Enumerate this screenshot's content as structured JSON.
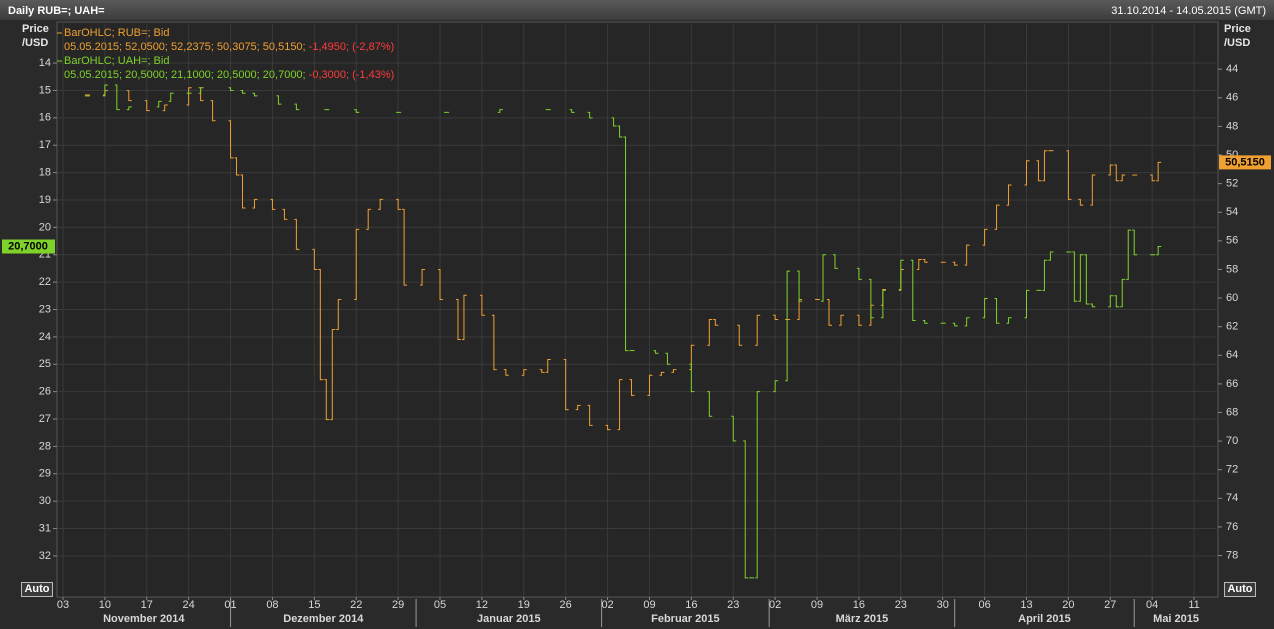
{
  "chart_data": {
    "type": "line",
    "line_style": "step",
    "title": "Daily RUB=; UAH=",
    "date_range": "31.10.2014 - 14.05.2015 (GMT)",
    "y_label": "Price /USD",
    "y2_label": "Price /USD",
    "inverted": true,
    "grid": true,
    "negative_color": "#ff3b3b",
    "controls": [
      "Auto",
      "Auto"
    ],
    "xlim": [
      "2014-11-02",
      "2015-05-15"
    ],
    "xticks": [
      {
        "value": "2014-11-03",
        "label": "03"
      },
      {
        "value": "2014-11-10",
        "label": "10"
      },
      {
        "value": "2014-11-17",
        "label": "17"
      },
      {
        "value": "2014-11-24",
        "label": "24"
      },
      {
        "value": "2014-12-01",
        "label": "01"
      },
      {
        "value": "2014-12-08",
        "label": "08"
      },
      {
        "value": "2014-12-15",
        "label": "15"
      },
      {
        "value": "2014-12-22",
        "label": "22"
      },
      {
        "value": "2014-12-29",
        "label": "29"
      },
      {
        "value": "2015-01-05",
        "label": "05"
      },
      {
        "value": "2015-01-12",
        "label": "12"
      },
      {
        "value": "2015-01-19",
        "label": "19"
      },
      {
        "value": "2015-01-26",
        "label": "26"
      },
      {
        "value": "2015-02-02",
        "label": "02"
      },
      {
        "value": "2015-02-09",
        "label": "09"
      },
      {
        "value": "2015-02-16",
        "label": "16"
      },
      {
        "value": "2015-02-23",
        "label": "23"
      },
      {
        "value": "2015-03-02",
        "label": "02"
      },
      {
        "value": "2015-03-09",
        "label": "09"
      },
      {
        "value": "2015-03-16",
        "label": "16"
      },
      {
        "value": "2015-03-23",
        "label": "23"
      },
      {
        "value": "2015-03-30",
        "label": "30"
      },
      {
        "value": "2015-04-06",
        "label": "06"
      },
      {
        "value": "2015-04-13",
        "label": "13"
      },
      {
        "value": "2015-04-20",
        "label": "20"
      },
      {
        "value": "2015-04-27",
        "label": "27"
      },
      {
        "value": "2015-05-04",
        "label": "04"
      },
      {
        "value": "2015-05-11",
        "label": "11"
      }
    ],
    "months": [
      {
        "value": "2014-11-01",
        "label": "November 2014"
      },
      {
        "value": "2014-12-01",
        "label": "Dezember 2014"
      },
      {
        "value": "2015-01-01",
        "label": "Januar 2015"
      },
      {
        "value": "2015-02-01",
        "label": "Februar 2015"
      },
      {
        "value": "2015-03-01",
        "label": "März 2015"
      },
      {
        "value": "2015-04-01",
        "label": "April 2015"
      },
      {
        "value": "2015-05-01",
        "label": "Mai 2015"
      }
    ],
    "ylim": [
      12.5,
      33.5
    ],
    "yticks": [
      14,
      15,
      16,
      17,
      18,
      19,
      20,
      21,
      22,
      23,
      24,
      25,
      26,
      27,
      28,
      29,
      30,
      31,
      32
    ],
    "y2lim": [
      40.7,
      80.9
    ],
    "y2ticks": [
      44,
      46,
      48,
      50,
      52,
      54,
      56,
      58,
      60,
      62,
      64,
      66,
      68,
      70,
      72,
      74,
      76,
      78
    ],
    "series": [
      {
        "name": "BarOHLC; RUB=; Bid",
        "color": "#f0a030",
        "axis": "y2",
        "quote": "05.05.2015; 52,0500; 52,2375; 50,3075; 50,5150;",
        "change": "-1,4950; (-2,87%)",
        "last_label": {
          "value": 50.515,
          "label": "50,5150"
        },
        "x": [
          "2014-11-07",
          "2014-11-10",
          "2014-11-14",
          "2014-11-17",
          "2014-11-20",
          "2014-11-24",
          "2014-11-26",
          "2014-11-28",
          "2014-12-01",
          "2014-12-02",
          "2014-12-03",
          "2014-12-05",
          "2014-12-08",
          "2014-12-10",
          "2014-12-12",
          "2014-12-15",
          "2014-12-16",
          "2014-12-17",
          "2014-12-18",
          "2014-12-19",
          "2014-12-22",
          "2014-12-24",
          "2014-12-26",
          "2014-12-29",
          "2014-12-30",
          "2015-01-02",
          "2015-01-05",
          "2015-01-08",
          "2015-01-09",
          "2015-01-12",
          "2015-01-14",
          "2015-01-16",
          "2015-01-19",
          "2015-01-22",
          "2015-01-23",
          "2015-01-26",
          "2015-01-28",
          "2015-01-30",
          "2015-02-02",
          "2015-02-04",
          "2015-02-06",
          "2015-02-09",
          "2015-02-11",
          "2015-02-13",
          "2015-02-16",
          "2015-02-19",
          "2015-02-20",
          "2015-02-24",
          "2015-02-27",
          "2015-03-02",
          "2015-03-04",
          "2015-03-06",
          "2015-03-09",
          "2015-03-11",
          "2015-03-13",
          "2015-03-16",
          "2015-03-18",
          "2015-03-20",
          "2015-03-23",
          "2015-03-26",
          "2015-03-27",
          "2015-03-30",
          "2015-04-01",
          "2015-04-03",
          "2015-04-06",
          "2015-04-08",
          "2015-04-10",
          "2015-04-13",
          "2015-04-15",
          "2015-04-16",
          "2015-04-17",
          "2015-04-20",
          "2015-04-22",
          "2015-04-24",
          "2015-04-27",
          "2015-04-28",
          "2015-04-29",
          "2015-05-01",
          "2015-05-04",
          "2015-05-05"
        ],
        "values": [
          45.8,
          45.5,
          46.2,
          46.9,
          46.5,
          45.3,
          46.2,
          47.6,
          50.2,
          51.4,
          53.7,
          53.1,
          53.8,
          54.5,
          56.6,
          58.0,
          65.7,
          68.5,
          62.2,
          60.1,
          55.2,
          53.8,
          53.1,
          53.8,
          59.1,
          58.0,
          60.1,
          62.9,
          59.8,
          61.2,
          65.0,
          65.4,
          65.0,
          65.2,
          64.3,
          67.8,
          67.5,
          68.9,
          69.2,
          65.7,
          66.8,
          65.4,
          65.2,
          65.0,
          63.3,
          61.5,
          61.9,
          63.3,
          61.2,
          61.5,
          61.5,
          60.1,
          60.1,
          61.9,
          61.2,
          61.9,
          60.5,
          59.4,
          58.0,
          57.3,
          57.5,
          57.5,
          57.7,
          56.3,
          55.2,
          53.5,
          52.1,
          50.4,
          51.8,
          49.7,
          49.7,
          53.1,
          53.5,
          51.4,
          50.7,
          51.8,
          51.4,
          51.4,
          51.8,
          50.515
        ]
      },
      {
        "name": "BarOHLC; UAH=; Bid",
        "color": "#7fd22a",
        "axis": "y",
        "quote": "05.05.2015; 20,5000; 21,1000; 20,5000; 20,7000;",
        "change": "-0,3000; (-1,43%)",
        "last_label": {
          "value": 20.7,
          "label": "20,7000"
        },
        "x": [
          "2014-11-07",
          "2014-11-10",
          "2014-11-12",
          "2014-11-14",
          "2014-11-19",
          "2014-11-21",
          "2014-11-24",
          "2014-11-26",
          "2014-12-01",
          "2014-12-03",
          "2014-12-05",
          "2014-12-09",
          "2014-12-12",
          "2014-12-17",
          "2014-12-22",
          "2014-12-29",
          "2015-01-06",
          "2015-01-15",
          "2015-01-23",
          "2015-01-27",
          "2015-01-30",
          "2015-02-03",
          "2015-02-04",
          "2015-02-05",
          "2015-02-06",
          "2015-02-10",
          "2015-02-12",
          "2015-02-16",
          "2015-02-19",
          "2015-02-23",
          "2015-02-25",
          "2015-02-26",
          "2015-02-27",
          "2015-03-02",
          "2015-03-04",
          "2015-03-06",
          "2015-03-10",
          "2015-03-12",
          "2015-03-16",
          "2015-03-18",
          "2015-03-20",
          "2015-03-23",
          "2015-03-25",
          "2015-03-27",
          "2015-03-30",
          "2015-04-01",
          "2015-04-03",
          "2015-04-06",
          "2015-04-08",
          "2015-04-10",
          "2015-04-13",
          "2015-04-15",
          "2015-04-16",
          "2015-04-17",
          "2015-04-20",
          "2015-04-21",
          "2015-04-22",
          "2015-04-23",
          "2015-04-24",
          "2015-04-27",
          "2015-04-28",
          "2015-04-29",
          "2015-04-30",
          "2015-05-01",
          "2015-05-04",
          "2015-05-05"
        ],
        "values": [
          15.2,
          14.8,
          15.7,
          15.6,
          15.4,
          15.1,
          15.1,
          14.9,
          15.0,
          15.1,
          15.2,
          15.5,
          15.7,
          15.7,
          15.8,
          15.8,
          15.8,
          15.7,
          15.7,
          15.8,
          16.0,
          16.3,
          16.7,
          24.5,
          24.5,
          24.6,
          25.0,
          26.0,
          26.9,
          27.8,
          32.8,
          32.8,
          26.0,
          25.6,
          21.6,
          22.7,
          21.0,
          21.5,
          21.9,
          23.3,
          22.3,
          21.2,
          23.4,
          23.5,
          23.5,
          23.6,
          23.3,
          22.6,
          23.5,
          23.3,
          22.3,
          22.3,
          21.2,
          20.9,
          20.9,
          22.7,
          21.0,
          22.8,
          22.9,
          22.5,
          22.9,
          21.9,
          20.1,
          21.0,
          21.0,
          20.7
        ]
      }
    ]
  }
}
